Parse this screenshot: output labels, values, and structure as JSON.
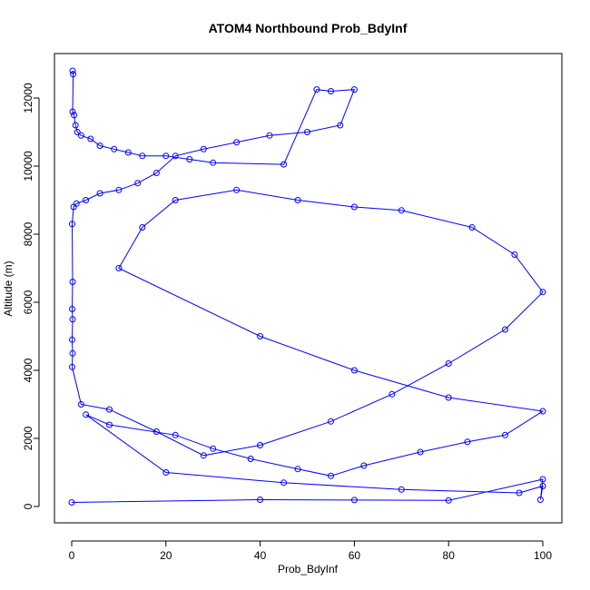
{
  "chart_data": {
    "type": "scatter",
    "title": "ATOM4 Northbound Prob_BdyInf",
    "xlabel": "Prob_BdyInf",
    "ylabel": "Altitude (m)",
    "xlim": [
      0,
      100
    ],
    "ylim": [
      0,
      12800
    ],
    "xticks": [
      0,
      20,
      40,
      60,
      80,
      100
    ],
    "yticks": [
      0,
      2000,
      4000,
      6000,
      8000,
      10000,
      12000
    ],
    "grid": false,
    "legend": "none",
    "marker": "open-circle",
    "connected_lines": true,
    "series_color": "#0000ff",
    "series": [
      {
        "name": "",
        "x": [
          0.2,
          0.3,
          0.2,
          0.5,
          0.8,
          1.2,
          2.0,
          4.0,
          6.0,
          9.0,
          12.0,
          15.0,
          20.0,
          25.0,
          30.0,
          45.0,
          52.0,
          55.0,
          60.0,
          57.0,
          50.0,
          42.0,
          35.0,
          28.0,
          22.0,
          18.0,
          14.0,
          10.0,
          6.0,
          3.0,
          1.0,
          0.4,
          0.1,
          0.2,
          0.1,
          0.2,
          0.1,
          0.2,
          0.1,
          2.0,
          8.0,
          18.0,
          28.0,
          40.0,
          55.0,
          68.0,
          80.0,
          92.0,
          100.0,
          94.0,
          85.0,
          70.0,
          60.0,
          48.0,
          35.0,
          22.0,
          15.0,
          10.0,
          40.0,
          60.0,
          80.0,
          100.0,
          92.0,
          84.0,
          74.0,
          62.0,
          55.0,
          48.0,
          38.0,
          30.0,
          22.0,
          8.0,
          3.0,
          20.0,
          45.0,
          70.0,
          95.0,
          100.0,
          99.5,
          100.0,
          80.0,
          60.0,
          40.0,
          0.0
        ],
        "y": [
          12800,
          12700,
          11600,
          11500,
          11200,
          11000,
          10900,
          10800,
          10600,
          10500,
          10400,
          10300,
          10300,
          10200,
          10100,
          10050,
          12250,
          12200,
          12250,
          11200,
          11000,
          10900,
          10700,
          10500,
          10300,
          9800,
          9500,
          9300,
          9200,
          9000,
          8900,
          8800,
          8300,
          6600,
          5800,
          5500,
          4900,
          4500,
          4100,
          3000,
          2850,
          2200,
          1500,
          1800,
          2500,
          3300,
          4200,
          5200,
          6300,
          7400,
          8200,
          8700,
          8800,
          9000,
          9300,
          9000,
          8200,
          7000,
          5000,
          4000,
          3200,
          2800,
          2100,
          1900,
          1600,
          1200,
          900,
          1100,
          1400,
          1700,
          2100,
          2400,
          2700,
          1000,
          700,
          500,
          400,
          600,
          200,
          800,
          180,
          190,
          200,
          120
        ]
      }
    ]
  }
}
